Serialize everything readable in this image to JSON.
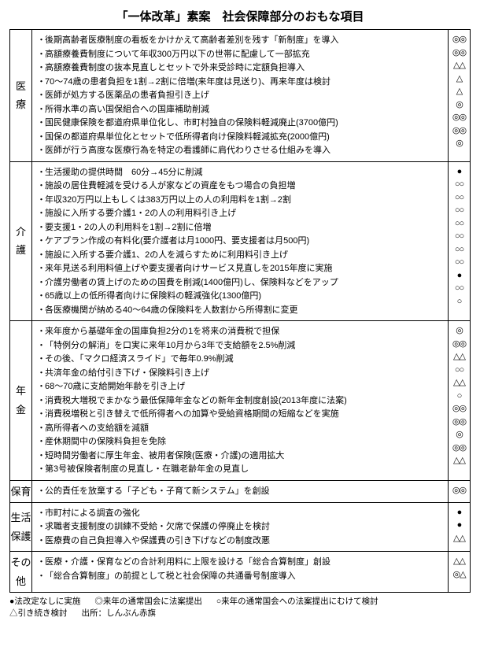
{
  "title": "「一体改革」素案　社会保障部分のおもな項目",
  "sections": [
    {
      "category": "医療",
      "cat_chars": [
        "医",
        "療"
      ],
      "items": [
        {
          "text": "後期高齢者医療制度の看板をかけかえて高齢者差別を残す「新制度」を導入",
          "mark": "◎◎"
        },
        {
          "text": "高額療養費制度について年収300万円以下の世帯に配慮して一部拡充",
          "mark": "◎◎"
        },
        {
          "text": "高額療養費制度の抜本見直しとセットで外来受診時に定額負担導入",
          "mark": "△△"
        },
        {
          "text": "70～74歳の患者負担を1割→2割に倍増(来年度は見送り)、再来年度は検討",
          "mark": "△"
        },
        {
          "text": "医師が処方する医薬品の患者負担引き上げ",
          "mark": "△"
        },
        {
          "text": "所得水準の高い国保組合への国庫補助削減",
          "mark": "◎"
        },
        {
          "text": "国民健康保険を都道府県単位化し、市町村独自の保険料軽減廃止(3700億円)",
          "mark": "◎◎"
        },
        {
          "text": "国保の都道府県単位化とセットで低所得者向け保険料軽減拡充(2000億円)",
          "mark": "◎◎"
        },
        {
          "text": "医師が行う高度な医療行為を特定の看護師に肩代わりさせる仕組みを導入",
          "mark": "◎"
        }
      ]
    },
    {
      "category": "介護",
      "cat_chars": [
        "介",
        "護"
      ],
      "items": [
        {
          "text": "生活援助の提供時間　60分→45分に削減",
          "mark": "●"
        },
        {
          "text": "施設の居住費軽減を受ける人が家などの資産をもつ場合の負担増",
          "mark": "○○"
        },
        {
          "text": "年収320万円以上もしくは383万円以上の人の利用料を1割→2割",
          "mark": "○○"
        },
        {
          "text": "施設に入所する要介護1・2の人の利用料引き上げ",
          "mark": "○○"
        },
        {
          "text": "要支援1・2の人の利用料を1割→2割に倍増",
          "mark": "○○"
        },
        {
          "text": "ケアプラン作成の有料化(要介護者は月1000円、要支援者は月500円)",
          "mark": "○○"
        },
        {
          "text": "施設に入所する要介護1、2の人を減らすために利用料引き上げ",
          "mark": "○○"
        },
        {
          "text": "来年見送る利用料値上げや要支援者向けサービス見直しを2015年度に実施",
          "mark": "○○"
        },
        {
          "text": "介護労働者の賃上げのための国費を削減(1400億円)し、保険料などをアップ",
          "mark": "●"
        },
        {
          "text": "65歳以上の低所得者向けに保険料の軽減強化(1300億円)",
          "mark": "○○"
        },
        {
          "text": "各医療機関が納める40～64歳の保険料を人数割から所得割に変更",
          "mark": "○"
        }
      ]
    },
    {
      "category": "年金",
      "cat_chars": [
        "年",
        "金"
      ],
      "items": [
        {
          "text": "来年度から基礎年金の国庫負担2分の1を将来の消費税で担保",
          "mark": "◎"
        },
        {
          "text": "「特例分の解消」を口実に来年10月から3年で支給額を2.5%削減",
          "mark": "◎◎"
        },
        {
          "text": "その後、「マクロ経済スライド」で毎年0.9%削減",
          "mark": "△△"
        },
        {
          "text": "共済年金の給付引き下げ・保険料引き上げ",
          "mark": "○○"
        },
        {
          "text": "68～70歳に支給開始年齢を引き上げ",
          "mark": "△△"
        },
        {
          "text": "消費税大増税でまかなう最低保障年金などの新年金制度創設(2013年度に法案)",
          "mark": "○"
        },
        {
          "text": "消費税増税と引き替えで低所得者への加算や受給資格期間の短縮などを実施",
          "mark": "◎◎"
        },
        {
          "text": "高所得者への支給額を減額",
          "mark": "◎◎"
        },
        {
          "text": "産休期間中の保険料負担を免除",
          "mark": "◎"
        },
        {
          "text": "短時間労働者に厚生年金、被用者保険(医療・介護)の適用拡大",
          "mark": "◎◎"
        },
        {
          "text": "第3号被保険者制度の見直し・在職老齢年金の見直し",
          "mark": "△△"
        }
      ]
    },
    {
      "category": "保育",
      "cat_chars": [
        "保育"
      ],
      "items": [
        {
          "text": "公的責任を放棄する「子ども・子育て新システム」を創設",
          "mark": "◎◎"
        }
      ]
    },
    {
      "category": "生活保護",
      "cat_chars": [
        "生活",
        "保護"
      ],
      "items": [
        {
          "text": "市町村による調査の強化",
          "mark": "●"
        },
        {
          "text": "求職者支援制度の訓練不受給・欠席で保護の停廃止を検討",
          "mark": "●"
        },
        {
          "text": "医療費の自己負担導入や保護費の引き下げなどの制度改悪",
          "mark": "△△"
        }
      ]
    },
    {
      "category": "その他",
      "cat_chars": [
        "その",
        "他"
      ],
      "items": [
        {
          "text": "医療・介護・保育などの合計利用料に上限を設ける「総合合算制度」創設",
          "mark": "△△"
        },
        {
          "text": "「総合合算制度」の前提として税と社会保障の共通番号制度導入",
          "mark": "◎△"
        }
      ]
    }
  ],
  "legend": {
    "line1": [
      {
        "sym": "●",
        "text": "法改定なしに実施"
      },
      {
        "sym": "◎",
        "text": "来年の通常国会に法案提出"
      },
      {
        "sym": "○",
        "text": "来年の通常国会への法案提出にむけて検討"
      }
    ],
    "line2": [
      {
        "sym": "△",
        "text": "引き続き検討"
      },
      {
        "sym": "",
        "text": "出所：しんぶん赤旗"
      }
    ]
  }
}
